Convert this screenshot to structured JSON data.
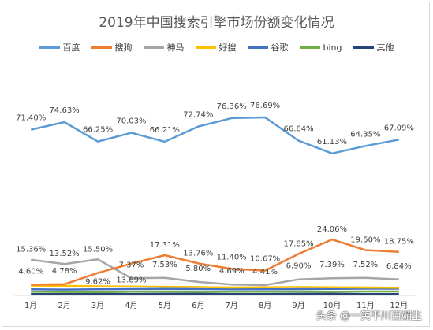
{
  "chart_data": {
    "type": "line",
    "title": "2019年中国搜索引擎市场份额变化情况",
    "categories": [
      "1月",
      "2月",
      "3月",
      "4月",
      "5月",
      "6月",
      "7月",
      "8月",
      "9月",
      "10月",
      "11月",
      "12月"
    ],
    "legend_position": "top",
    "grid": false,
    "series": [
      {
        "name": "百度",
        "color": "#5b9bd5",
        "values": [
          71.4,
          74.63,
          66.25,
          70.03,
          66.21,
          72.74,
          76.36,
          76.69,
          66.64,
          61.13,
          64.35,
          67.09
        ],
        "labels": [
          "71.40%",
          "74.63%",
          "66.25%",
          "70.03%",
          "66.21%",
          "72.74%",
          "76.36%",
          "76.69%",
          "66.64%",
          "61.13%",
          "64.35%",
          "67.09%"
        ]
      },
      {
        "name": "搜狗",
        "color": "#ed7d31",
        "values": [
          4.6,
          4.78,
          9.62,
          13.69,
          17.31,
          13.76,
          11.4,
          10.67,
          17.85,
          24.06,
          19.5,
          18.75
        ],
        "labels": [
          "4.60%",
          "4.78%",
          "9.62%",
          "13.69%",
          "17.31%",
          "13.76%",
          "11.40%",
          "10.67%",
          "17.85%",
          "24.06%",
          "19.50%",
          "18.75%"
        ]
      },
      {
        "name": "神马",
        "color": "#a5a5a5",
        "values": [
          15.36,
          13.52,
          15.5,
          7.37,
          7.53,
          5.8,
          4.69,
          4.41,
          6.9,
          7.39,
          7.52,
          6.84
        ],
        "labels": [
          "15.36%",
          "13.52%",
          "15.50%",
          "7.37%",
          "7.53%",
          "5.80%",
          "4.69%",
          "4.41%",
          "6.90%",
          "7.39%",
          "7.52%",
          "6.84%"
        ]
      },
      {
        "name": "好搜",
        "color": "#ffc000",
        "values": [
          4.2,
          4.1,
          3.9,
          3.8,
          3.7,
          3.6,
          3.4,
          3.5,
          3.6,
          3.5,
          3.4,
          3.3
        ]
      },
      {
        "name": "谷歌",
        "color": "#4472c4",
        "values": [
          2.6,
          2.5,
          2.6,
          2.7,
          2.8,
          2.7,
          2.6,
          2.6,
          2.7,
          2.8,
          2.9,
          2.9
        ]
      },
      {
        "name": "bing",
        "color": "#70ad47",
        "values": [
          1.6,
          1.5,
          1.5,
          1.6,
          1.7,
          1.6,
          1.6,
          1.6,
          1.7,
          1.6,
          1.7,
          1.7
        ]
      },
      {
        "name": "其他",
        "color": "#264478",
        "values": [
          0.6,
          0.6,
          0.7,
          0.6,
          0.7,
          0.7,
          0.6,
          0.6,
          0.7,
          0.7,
          0.6,
          0.6
        ]
      }
    ],
    "ylim": [
      0,
      95
    ]
  },
  "watermark": "头条 @一笑平川百媚生"
}
